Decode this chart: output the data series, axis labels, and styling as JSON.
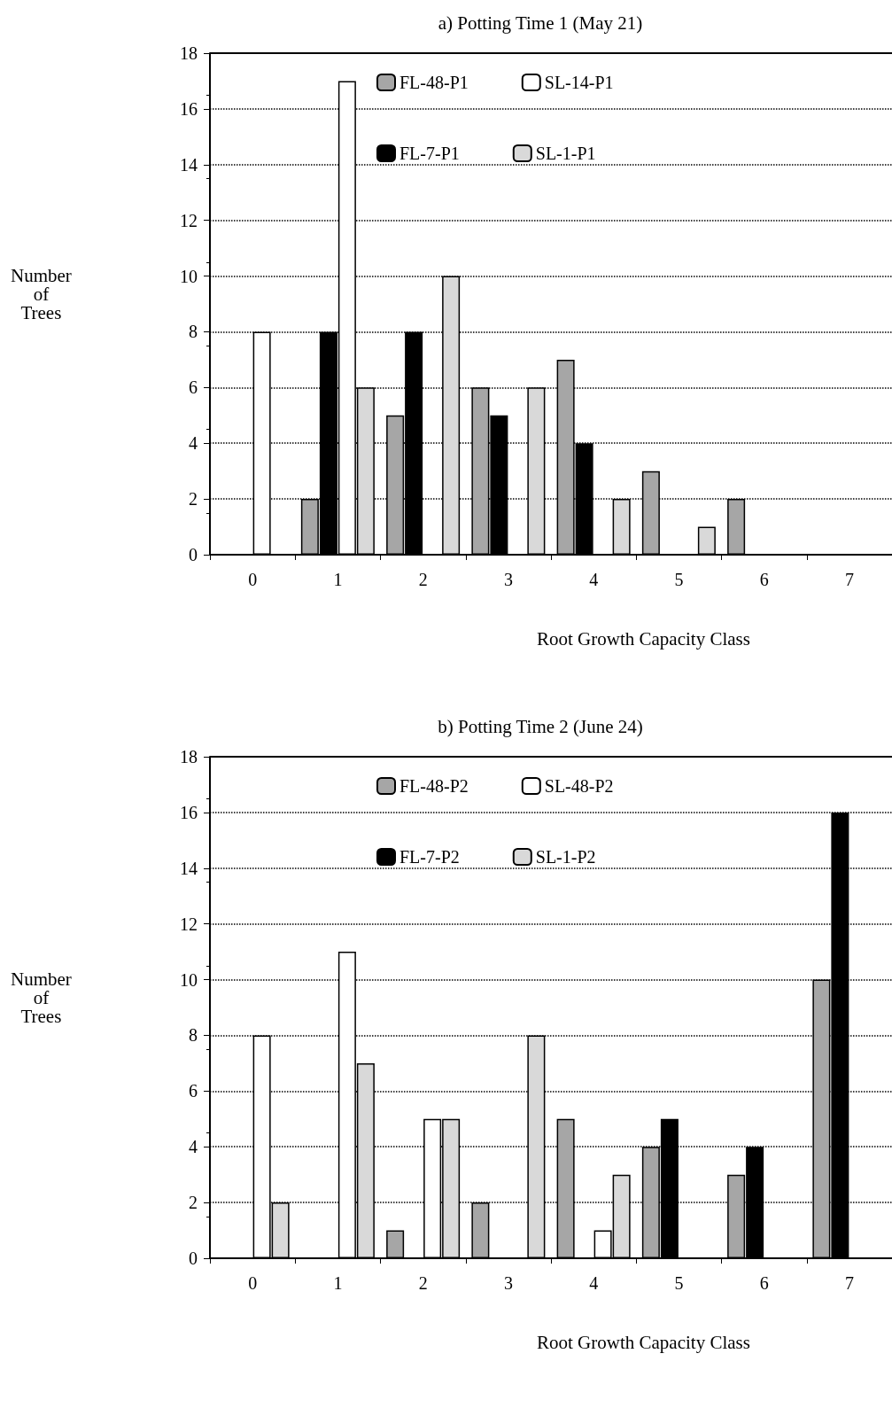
{
  "chart_data": [
    {
      "type": "bar",
      "title": "a) Potting Time 1 (May 21)",
      "xlabel": "Root Growth Capacity Class",
      "ylabel": "Number\nof\nTrees",
      "categories": [
        "0",
        "1",
        "2",
        "3",
        "4",
        "5",
        "6",
        "7"
      ],
      "series": [
        {
          "name": "FL-48-P1",
          "color": "#a6a6a6",
          "values": [
            null,
            2,
            5,
            6,
            7,
            3,
            2,
            null
          ]
        },
        {
          "name": "FL-7-P1",
          "color": "#000000",
          "values": [
            null,
            8,
            8,
            5,
            4,
            null,
            null,
            null
          ]
        },
        {
          "name": "SL-14-P1",
          "color": "#ffffff",
          "values": [
            8,
            17,
            null,
            null,
            null,
            null,
            null,
            null
          ]
        },
        {
          "name": "SL-1-P1",
          "color": "#d9d9d9",
          "values": [
            null,
            6,
            10,
            6,
            2,
            1,
            null,
            null
          ]
        }
      ],
      "ylim": [
        0,
        18
      ],
      "yticks": [
        0,
        2,
        4,
        6,
        8,
        10,
        12,
        14,
        16,
        18
      ],
      "grid": "y",
      "legend": "top"
    },
    {
      "type": "bar",
      "title": "b) Potting Time 2 (June 24)",
      "xlabel": "Root Growth Capacity Class",
      "ylabel": "Number\nof\nTrees",
      "categories": [
        "0",
        "1",
        "2",
        "3",
        "4",
        "5",
        "6",
        "7"
      ],
      "series": [
        {
          "name": "FL-48-P2",
          "color": "#a6a6a6",
          "values": [
            null,
            null,
            1,
            2,
            5,
            4,
            3,
            10
          ]
        },
        {
          "name": "FL-7-P2",
          "color": "#000000",
          "values": [
            null,
            null,
            null,
            null,
            null,
            5,
            4,
            16
          ]
        },
        {
          "name": "SL-48-P2",
          "color": "#ffffff",
          "values": [
            8,
            11,
            5,
            null,
            1,
            null,
            null,
            null
          ]
        },
        {
          "name": "SL-1-P2",
          "color": "#d9d9d9",
          "values": [
            2,
            7,
            5,
            8,
            3,
            null,
            null,
            null
          ]
        }
      ],
      "ylim": [
        0,
        18
      ],
      "yticks": [
        0,
        2,
        4,
        6,
        8,
        10,
        12,
        14,
        16,
        18
      ],
      "grid": "y",
      "legend": "top"
    }
  ]
}
